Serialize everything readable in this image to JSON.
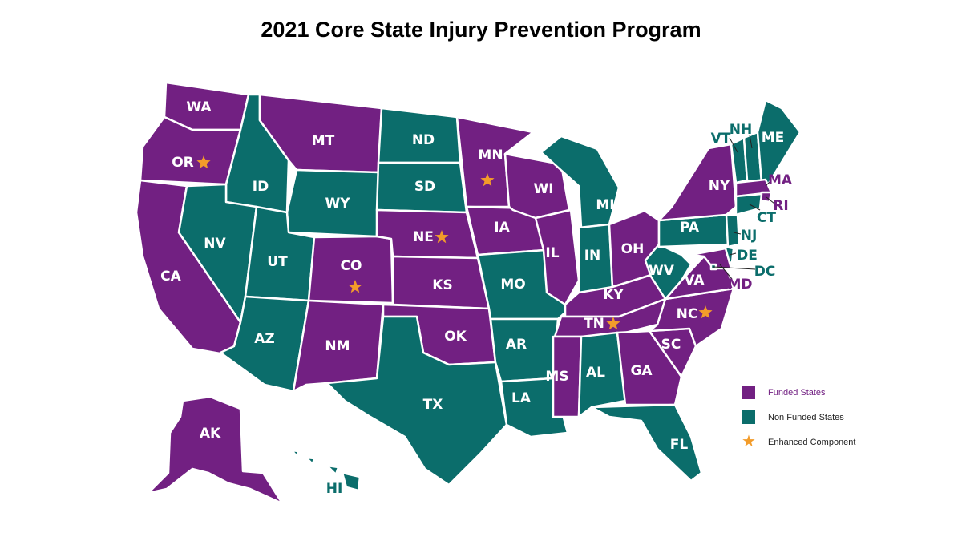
{
  "title": "2021 Core State Injury Prevention Program",
  "colors": {
    "funded": "#722082",
    "non_funded": "#0b6d6b",
    "enhanced": "#f39c2a"
  },
  "legend": [
    {
      "label": "Funded States",
      "type": "swatch",
      "color": "#722082",
      "label_color": "#722082"
    },
    {
      "label": "Non Funded States",
      "type": "swatch",
      "color": "#0b6d6b",
      "label_color": "#222222"
    },
    {
      "label": "Enhanced Component",
      "type": "star",
      "color": "#f39c2a",
      "label_color": "#222222"
    }
  ],
  "states": [
    {
      "abbr": "WA",
      "funded": true,
      "enhanced": false
    },
    {
      "abbr": "OR",
      "funded": true,
      "enhanced": true
    },
    {
      "abbr": "CA",
      "funded": true,
      "enhanced": false
    },
    {
      "abbr": "ID",
      "funded": false,
      "enhanced": false
    },
    {
      "abbr": "NV",
      "funded": false,
      "enhanced": false
    },
    {
      "abbr": "MT",
      "funded": true,
      "enhanced": false
    },
    {
      "abbr": "WY",
      "funded": false,
      "enhanced": false
    },
    {
      "abbr": "UT",
      "funded": false,
      "enhanced": false
    },
    {
      "abbr": "AZ",
      "funded": false,
      "enhanced": false
    },
    {
      "abbr": "CO",
      "funded": true,
      "enhanced": true
    },
    {
      "abbr": "NM",
      "funded": true,
      "enhanced": false
    },
    {
      "abbr": "ND",
      "funded": false,
      "enhanced": false
    },
    {
      "abbr": "SD",
      "funded": false,
      "enhanced": false
    },
    {
      "abbr": "NE",
      "funded": true,
      "enhanced": true
    },
    {
      "abbr": "KS",
      "funded": true,
      "enhanced": false
    },
    {
      "abbr": "OK",
      "funded": true,
      "enhanced": false
    },
    {
      "abbr": "TX",
      "funded": false,
      "enhanced": false
    },
    {
      "abbr": "MN",
      "funded": true,
      "enhanced": true
    },
    {
      "abbr": "IA",
      "funded": true,
      "enhanced": false
    },
    {
      "abbr": "MO",
      "funded": false,
      "enhanced": false
    },
    {
      "abbr": "AR",
      "funded": false,
      "enhanced": false
    },
    {
      "abbr": "LA",
      "funded": false,
      "enhanced": false
    },
    {
      "abbr": "WI",
      "funded": true,
      "enhanced": false
    },
    {
      "abbr": "IL",
      "funded": true,
      "enhanced": false
    },
    {
      "abbr": "MI",
      "funded": false,
      "enhanced": false
    },
    {
      "abbr": "IN",
      "funded": false,
      "enhanced": false
    },
    {
      "abbr": "OH",
      "funded": true,
      "enhanced": false
    },
    {
      "abbr": "KY",
      "funded": true,
      "enhanced": false
    },
    {
      "abbr": "TN",
      "funded": true,
      "enhanced": true
    },
    {
      "abbr": "MS",
      "funded": true,
      "enhanced": false
    },
    {
      "abbr": "AL",
      "funded": false,
      "enhanced": false
    },
    {
      "abbr": "GA",
      "funded": true,
      "enhanced": false
    },
    {
      "abbr": "FL",
      "funded": false,
      "enhanced": false
    },
    {
      "abbr": "SC",
      "funded": true,
      "enhanced": false
    },
    {
      "abbr": "NC",
      "funded": true,
      "enhanced": true
    },
    {
      "abbr": "VA",
      "funded": true,
      "enhanced": false
    },
    {
      "abbr": "WV",
      "funded": false,
      "enhanced": false
    },
    {
      "abbr": "PA",
      "funded": false,
      "enhanced": false
    },
    {
      "abbr": "NY",
      "funded": true,
      "enhanced": false
    },
    {
      "abbr": "VT",
      "funded": false,
      "enhanced": false
    },
    {
      "abbr": "NH",
      "funded": false,
      "enhanced": false
    },
    {
      "abbr": "ME",
      "funded": false,
      "enhanced": false
    },
    {
      "abbr": "MA",
      "funded": true,
      "enhanced": false
    },
    {
      "abbr": "RI",
      "funded": true,
      "enhanced": false
    },
    {
      "abbr": "CT",
      "funded": false,
      "enhanced": false
    },
    {
      "abbr": "NJ",
      "funded": false,
      "enhanced": false
    },
    {
      "abbr": "DE",
      "funded": false,
      "enhanced": false
    },
    {
      "abbr": "MD",
      "funded": true,
      "enhanced": false
    },
    {
      "abbr": "DC",
      "funded": false,
      "enhanced": false
    },
    {
      "abbr": "AK",
      "funded": true,
      "enhanced": false
    },
    {
      "abbr": "HI",
      "funded": false,
      "enhanced": false
    }
  ]
}
